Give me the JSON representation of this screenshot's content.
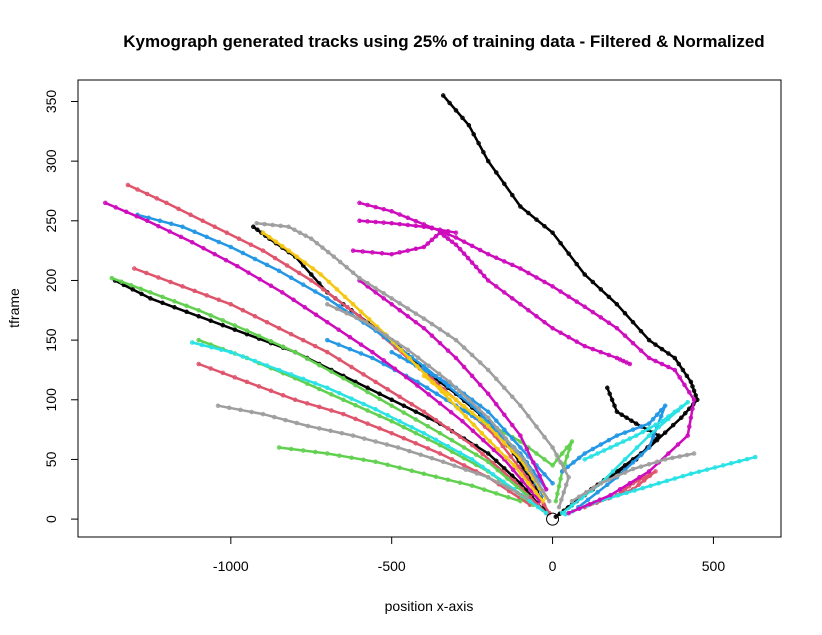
{
  "chart_data": {
    "type": "scatter",
    "title": "Kymograph generated tracks using 25% of training data - Filtered & Normalized",
    "xlabel": "position x-axis",
    "ylabel": "tframe",
    "xlim": [
      -1475,
      710
    ],
    "ylim": [
      -15,
      368
    ],
    "x_ticks": [
      -1000,
      -500,
      0,
      500
    ],
    "x_tick_labels": [
      "-1000",
      "-500",
      "0",
      "500"
    ],
    "y_ticks": [
      0,
      50,
      100,
      150,
      200,
      250,
      300,
      350
    ],
    "y_tick_labels": [
      "0",
      "50",
      "100",
      "150",
      "200",
      "250",
      "300",
      "350"
    ],
    "grid": false,
    "legend": "none",
    "palette": [
      "#000000",
      "#DF536B",
      "#61D04F",
      "#2297E6",
      "#28E2E5",
      "#CD0BBC",
      "#F5C710",
      "#9E9E9E"
    ],
    "origin_marker": {
      "x": 0,
      "y": 0
    },
    "series": [
      {
        "color": "#000000",
        "points": [
          [
            -340,
            355
          ],
          [
            -260,
            330
          ],
          [
            -200,
            300
          ],
          [
            -100,
            262
          ],
          [
            0,
            240
          ],
          [
            100,
            205
          ],
          [
            200,
            180
          ],
          [
            300,
            150
          ],
          [
            380,
            135
          ],
          [
            430,
            115
          ],
          [
            450,
            100
          ],
          [
            400,
            85
          ],
          [
            300,
            60
          ],
          [
            200,
            40
          ],
          [
            120,
            25
          ],
          [
            60,
            12
          ],
          [
            10,
            2
          ]
        ]
      },
      {
        "color": "#000000",
        "points": [
          [
            -930,
            245
          ],
          [
            -880,
            235
          ],
          [
            -800,
            220
          ],
          [
            -700,
            190
          ],
          [
            -600,
            170
          ],
          [
            -500,
            150
          ],
          [
            -400,
            125
          ],
          [
            -300,
            105
          ],
          [
            -200,
            82
          ],
          [
            -120,
            55
          ],
          [
            -60,
            30
          ],
          [
            -15,
            5
          ]
        ]
      },
      {
        "color": "#000000",
        "points": [
          [
            -1360,
            200
          ],
          [
            -1250,
            185
          ],
          [
            -1100,
            170
          ],
          [
            -950,
            155
          ],
          [
            -800,
            140
          ],
          [
            -650,
            120
          ],
          [
            -500,
            100
          ],
          [
            -350,
            80
          ],
          [
            -200,
            55
          ],
          [
            -100,
            30
          ],
          [
            -30,
            8
          ]
        ]
      },
      {
        "color": "#000000",
        "points": [
          [
            170,
            110
          ],
          [
            200,
            90
          ],
          [
            260,
            80
          ],
          [
            330,
            70
          ],
          [
            260,
            50
          ],
          [
            150,
            30
          ],
          [
            50,
            10
          ]
        ]
      },
      {
        "color": "#DF536B",
        "points": [
          [
            -1320,
            280
          ],
          [
            -1200,
            265
          ],
          [
            -1050,
            245
          ],
          [
            -900,
            225
          ],
          [
            -750,
            200
          ],
          [
            -600,
            170
          ],
          [
            -450,
            135
          ],
          [
            -300,
            100
          ],
          [
            -180,
            70
          ],
          [
            -80,
            35
          ],
          [
            -10,
            5
          ]
        ]
      },
      {
        "color": "#DF536B",
        "points": [
          [
            -1300,
            210
          ],
          [
            -1150,
            195
          ],
          [
            -1000,
            180
          ],
          [
            -850,
            160
          ],
          [
            -700,
            140
          ],
          [
            -550,
            115
          ],
          [
            -400,
            90
          ],
          [
            -250,
            62
          ],
          [
            -120,
            32
          ],
          [
            -20,
            5
          ]
        ]
      },
      {
        "color": "#DF536B",
        "points": [
          [
            -1100,
            130
          ],
          [
            -950,
            115
          ],
          [
            -800,
            100
          ],
          [
            -650,
            88
          ],
          [
            -500,
            72
          ],
          [
            -350,
            55
          ],
          [
            -200,
            35
          ],
          [
            -70,
            12
          ]
        ]
      },
      {
        "color": "#DF536B",
        "points": [
          [
            200,
            20
          ],
          [
            250,
            30
          ],
          [
            320,
            40
          ],
          [
            250,
            25
          ],
          [
            100,
            10
          ]
        ]
      },
      {
        "color": "#61D04F",
        "points": [
          [
            -1370,
            202
          ],
          [
            -1250,
            190
          ],
          [
            -1100,
            175
          ],
          [
            -950,
            158
          ],
          [
            -800,
            140
          ],
          [
            -650,
            118
          ],
          [
            -500,
            95
          ],
          [
            -350,
            72
          ],
          [
            -200,
            48
          ],
          [
            -80,
            20
          ]
        ]
      },
      {
        "color": "#61D04F",
        "points": [
          [
            -1100,
            150
          ],
          [
            -950,
            135
          ],
          [
            -800,
            118
          ],
          [
            -650,
            100
          ],
          [
            -500,
            82
          ],
          [
            -350,
            62
          ],
          [
            -200,
            40
          ],
          [
            -60,
            12
          ]
        ]
      },
      {
        "color": "#61D04F",
        "points": [
          [
            -850,
            60
          ],
          [
            -700,
            55
          ],
          [
            -550,
            48
          ],
          [
            -400,
            38
          ],
          [
            -250,
            28
          ],
          [
            -100,
            15
          ]
        ]
      },
      {
        "color": "#61D04F",
        "points": [
          [
            -300,
            95
          ],
          [
            -200,
            80
          ],
          [
            -100,
            65
          ],
          [
            0,
            45
          ],
          [
            60,
            65
          ],
          [
            30,
            40
          ],
          [
            10,
            15
          ]
        ]
      },
      {
        "color": "#2297E6",
        "points": [
          [
            -1290,
            255
          ],
          [
            -1150,
            245
          ],
          [
            -1000,
            228
          ],
          [
            -850,
            208
          ],
          [
            -700,
            185
          ],
          [
            -550,
            158
          ],
          [
            -400,
            128
          ],
          [
            -250,
            95
          ],
          [
            -120,
            60
          ],
          [
            -30,
            20
          ]
        ]
      },
      {
        "color": "#2297E6",
        "points": [
          [
            -700,
            150
          ],
          [
            -560,
            135
          ],
          [
            -420,
            115
          ],
          [
            -300,
            95
          ],
          [
            -200,
            78
          ],
          [
            -100,
            55
          ],
          [
            -20,
            25
          ]
        ]
      },
      {
        "color": "#2297E6",
        "points": [
          [
            -500,
            140
          ],
          [
            -400,
            125
          ],
          [
            -300,
            110
          ],
          [
            -200,
            90
          ],
          [
            -100,
            60
          ],
          [
            0,
            30
          ]
        ]
      },
      {
        "color": "#2297E6",
        "points": [
          [
            30,
            40
          ],
          [
            100,
            55
          ],
          [
            200,
            70
          ],
          [
            300,
            80
          ],
          [
            350,
            95
          ],
          [
            300,
            60
          ],
          [
            200,
            35
          ],
          [
            80,
            10
          ]
        ]
      },
      {
        "color": "#28E2E5",
        "points": [
          [
            -1120,
            148
          ],
          [
            -1000,
            140
          ],
          [
            -850,
            125
          ],
          [
            -700,
            110
          ],
          [
            -550,
            92
          ],
          [
            -400,
            72
          ],
          [
            -250,
            50
          ],
          [
            -120,
            25
          ],
          [
            -20,
            5
          ]
        ]
      },
      {
        "color": "#28E2E5",
        "points": [
          [
            630,
            52
          ],
          [
            530,
            45
          ],
          [
            430,
            38
          ],
          [
            330,
            30
          ],
          [
            230,
            22
          ],
          [
            130,
            14
          ],
          [
            40,
            4
          ]
        ]
      },
      {
        "color": "#28E2E5",
        "points": [
          [
            100,
            50
          ],
          [
            180,
            60
          ],
          [
            260,
            70
          ],
          [
            340,
            82
          ],
          [
            420,
            98
          ],
          [
            300,
            70
          ],
          [
            150,
            30
          ],
          [
            30,
            5
          ]
        ]
      },
      {
        "color": "#CD0BBC",
        "points": [
          [
            -1390,
            265
          ],
          [
            -1260,
            250
          ],
          [
            -1120,
            232
          ],
          [
            -980,
            212
          ],
          [
            -840,
            190
          ],
          [
            -700,
            165
          ],
          [
            -560,
            140
          ],
          [
            -420,
            112
          ],
          [
            -280,
            82
          ],
          [
            -150,
            50
          ],
          [
            -40,
            15
          ]
        ]
      },
      {
        "color": "#CD0BBC",
        "points": [
          [
            -600,
            200
          ],
          [
            -500,
            180
          ],
          [
            -400,
            160
          ],
          [
            -300,
            135
          ],
          [
            -200,
            105
          ],
          [
            -100,
            70
          ],
          [
            -20,
            25
          ]
        ]
      },
      {
        "color": "#CD0BBC",
        "points": [
          [
            -620,
            225
          ],
          [
            -500,
            222
          ],
          [
            -400,
            228
          ],
          [
            -350,
            240
          ],
          [
            -300,
            230
          ],
          [
            -250,
            215
          ],
          [
            -200,
            200
          ],
          [
            -100,
            180
          ],
          [
            0,
            160
          ],
          [
            100,
            145
          ],
          [
            200,
            135
          ],
          [
            240,
            130
          ]
        ]
      },
      {
        "color": "#CD0BBC",
        "points": [
          [
            -600,
            250
          ],
          [
            -500,
            248
          ],
          [
            -400,
            245
          ],
          [
            -300,
            240
          ]
        ]
      },
      {
        "color": "#CD0BBC",
        "points": [
          [
            -600,
            265
          ],
          [
            -500,
            258
          ],
          [
            -400,
            247
          ],
          [
            -300,
            236
          ],
          [
            -200,
            222
          ],
          [
            -100,
            210
          ],
          [
            0,
            195
          ],
          [
            100,
            178
          ],
          [
            200,
            160
          ],
          [
            300,
            135
          ],
          [
            380,
            125
          ],
          [
            440,
            100
          ],
          [
            420,
            70
          ],
          [
            300,
            40
          ],
          [
            180,
            20
          ],
          [
            50,
            5
          ]
        ]
      },
      {
        "color": "#F5C710",
        "points": [
          [
            -900,
            240
          ],
          [
            -820,
            225
          ],
          [
            -720,
            205
          ],
          [
            -620,
            180
          ],
          [
            -520,
            155
          ],
          [
            -420,
            128
          ],
          [
            -320,
            100
          ],
          [
            -220,
            72
          ],
          [
            -120,
            45
          ],
          [
            -30,
            15
          ]
        ]
      },
      {
        "color": "#F5C710",
        "points": [
          [
            -400,
            120
          ],
          [
            -300,
            100
          ],
          [
            -200,
            78
          ],
          [
            -100,
            50
          ],
          [
            -20,
            18
          ]
        ]
      },
      {
        "color": "#9E9E9E",
        "points": [
          [
            -920,
            248
          ],
          [
            -820,
            245
          ],
          [
            -750,
            235
          ],
          [
            -680,
            220
          ],
          [
            -600,
            202
          ],
          [
            -500,
            185
          ],
          [
            -400,
            168
          ],
          [
            -300,
            150
          ],
          [
            -200,
            125
          ],
          [
            -100,
            95
          ],
          [
            0,
            60
          ],
          [
            50,
            35
          ],
          [
            20,
            10
          ]
        ]
      },
      {
        "color": "#9E9E9E",
        "points": [
          [
            -1040,
            95
          ],
          [
            -900,
            88
          ],
          [
            -760,
            78
          ],
          [
            -620,
            70
          ],
          [
            -480,
            60
          ],
          [
            -340,
            48
          ],
          [
            -200,
            35
          ],
          [
            -80,
            18
          ]
        ]
      },
      {
        "color": "#9E9E9E",
        "points": [
          [
            -700,
            180
          ],
          [
            -580,
            165
          ],
          [
            -450,
            142
          ],
          [
            -320,
            115
          ],
          [
            -200,
            85
          ],
          [
            -90,
            50
          ],
          [
            -10,
            15
          ]
        ]
      },
      {
        "color": "#9E9E9E",
        "points": [
          [
            440,
            55
          ],
          [
            350,
            50
          ],
          [
            250,
            42
          ],
          [
            150,
            30
          ],
          [
            60,
            15
          ]
        ]
      }
    ]
  }
}
